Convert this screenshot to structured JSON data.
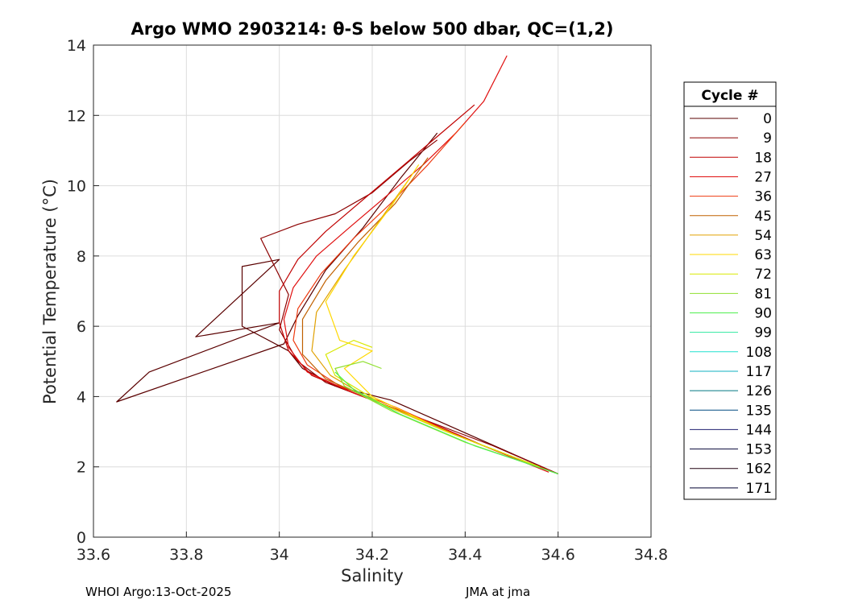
{
  "chart_data": {
    "type": "line",
    "title": "Argo WMO 2903214: θ-S below 500 dbar,  QC=(1,2)",
    "xlabel": "Salinity",
    "ylabel": "Potential Temperature (°C)",
    "xlim": [
      33.6,
      34.8
    ],
    "ylim": [
      0,
      14
    ],
    "xticks": [
      33.6,
      33.8,
      34,
      34.2,
      34.4,
      34.6,
      34.8
    ],
    "xtick_labels": [
      "33.6",
      "33.8",
      "34",
      "34.2",
      "34.4",
      "34.6",
      "34.8"
    ],
    "yticks": [
      0,
      2,
      4,
      6,
      8,
      10,
      12,
      14
    ],
    "ytick_labels": [
      "0",
      "2",
      "4",
      "6",
      "8",
      "10",
      "12",
      "14"
    ],
    "grid": true,
    "legend": {
      "title": "Cycle #",
      "placement": "outside-right",
      "entries": [
        {
          "label": "0",
          "color": "#5a0000"
        },
        {
          "label": "9",
          "color": "#8c0000"
        },
        {
          "label": "18",
          "color": "#c00000"
        },
        {
          "label": "27",
          "color": "#e01010"
        },
        {
          "label": "36",
          "color": "#ee3a10"
        },
        {
          "label": "45",
          "color": "#c06000"
        },
        {
          "label": "54",
          "color": "#e0a000"
        },
        {
          "label": "63",
          "color": "#ffd800"
        },
        {
          "label": "72",
          "color": "#d8e800"
        },
        {
          "label": "81",
          "color": "#90e030"
        },
        {
          "label": "90",
          "color": "#50f050"
        },
        {
          "label": "99",
          "color": "#30e8a0"
        },
        {
          "label": "108",
          "color": "#20e0d0"
        },
        {
          "label": "117",
          "color": "#10b0c0"
        },
        {
          "label": "126",
          "color": "#007880"
        },
        {
          "label": "135",
          "color": "#004a80"
        },
        {
          "label": "144",
          "color": "#202070"
        },
        {
          "label": "153",
          "color": "#101040"
        },
        {
          "label": "162",
          "color": "#200010"
        },
        {
          "label": "171",
          "color": "#000030"
        }
      ]
    },
    "series": [
      {
        "name": "0",
        "color": "#5a0000",
        "x": [
          34.6,
          34.48,
          34.36,
          34.24,
          34.12,
          34.05,
          34.02,
          33.92,
          33.92,
          34.0,
          33.82,
          34.0,
          33.72,
          33.65,
          34.01,
          34.04,
          34.1,
          34.18,
          34.26,
          34.34
        ],
        "y": [
          1.8,
          2.5,
          3.2,
          3.9,
          4.3,
          4.8,
          5.3,
          6.0,
          7.7,
          7.9,
          5.7,
          6.1,
          4.7,
          3.85,
          5.5,
          6.3,
          7.6,
          8.8,
          10.2,
          11.5
        ]
      },
      {
        "name": "9",
        "color": "#8c0000",
        "x": [
          34.6,
          34.46,
          34.32,
          34.2,
          34.1,
          34.04,
          34.0,
          34.02,
          33.96,
          34.04,
          34.12,
          34.2,
          34.28,
          34.34
        ],
        "y": [
          1.8,
          2.6,
          3.3,
          3.9,
          4.4,
          5.0,
          5.9,
          6.9,
          8.5,
          8.9,
          9.2,
          9.8,
          10.7,
          11.3
        ]
      },
      {
        "name": "18",
        "color": "#c00000",
        "x": [
          34.6,
          34.44,
          34.3,
          34.18,
          34.07,
          34.02,
          34.0,
          34.0,
          34.04,
          34.1,
          34.18,
          34.26,
          34.34,
          34.42
        ],
        "y": [
          1.8,
          2.6,
          3.4,
          4.0,
          4.6,
          5.3,
          6.1,
          7.0,
          7.9,
          8.7,
          9.6,
          10.5,
          11.4,
          12.3
        ]
      },
      {
        "name": "27",
        "color": "#e01010",
        "x": [
          34.58,
          34.42,
          34.28,
          34.16,
          34.06,
          34.02,
          34.01,
          34.03,
          34.08,
          34.15,
          34.23,
          34.31,
          34.38,
          34.44,
          34.49
        ],
        "y": [
          1.85,
          2.7,
          3.5,
          4.1,
          4.7,
          5.4,
          6.2,
          7.1,
          8.0,
          8.8,
          9.7,
          10.6,
          11.5,
          12.4,
          13.7
        ]
      },
      {
        "name": "36",
        "color": "#ee3a10",
        "x": [
          34.58,
          34.4,
          34.25,
          34.13,
          34.06,
          34.03,
          34.04,
          34.09,
          34.16,
          34.24,
          34.32,
          34.4
        ],
        "y": [
          1.9,
          2.8,
          3.7,
          4.3,
          4.9,
          5.6,
          6.5,
          7.5,
          8.5,
          9.5,
          10.6,
          11.8
        ]
      },
      {
        "name": "45",
        "color": "#c06000",
        "x": [
          34.56,
          34.38,
          34.22,
          34.1,
          34.05,
          34.05,
          34.1,
          34.17,
          34.25,
          34.32
        ],
        "y": [
          2.0,
          2.9,
          3.8,
          4.5,
          5.2,
          6.2,
          7.3,
          8.4,
          9.5,
          10.8
        ]
      },
      {
        "name": "54",
        "color": "#e0a000",
        "x": [
          34.56,
          34.36,
          34.2,
          34.11,
          34.07,
          34.08,
          34.14,
          34.21,
          34.28
        ],
        "y": [
          2.0,
          3.0,
          3.9,
          4.6,
          5.3,
          6.4,
          7.6,
          8.9,
          10.2
        ]
      },
      {
        "name": "63",
        "color": "#ffd800",
        "x": [
          34.54,
          34.36,
          34.2,
          34.14,
          34.2,
          34.13,
          34.1,
          34.16,
          34.24,
          34.3
        ],
        "y": [
          2.1,
          3.0,
          4.0,
          4.8,
          5.3,
          5.6,
          6.7,
          8.0,
          9.4,
          10.6
        ]
      },
      {
        "name": "72",
        "color": "#d8e800",
        "x": [
          34.56,
          34.38,
          34.22,
          34.12,
          34.1,
          34.16,
          34.2
        ],
        "y": [
          2.0,
          2.9,
          3.8,
          4.6,
          5.2,
          5.6,
          5.4
        ]
      },
      {
        "name": "81",
        "color": "#90e030",
        "x": [
          34.6,
          34.4,
          34.24,
          34.14,
          34.12,
          34.18,
          34.22
        ],
        "y": [
          1.8,
          2.7,
          3.6,
          4.3,
          4.8,
          5.0,
          4.8
        ]
      },
      {
        "name": "90",
        "color": "#50f050",
        "x": [
          34.6,
          34.42,
          34.26,
          34.16,
          34.12
        ],
        "y": [
          1.8,
          2.6,
          3.5,
          4.2,
          4.7
        ]
      }
    ]
  },
  "legend_heading": "Cycle #",
  "footer": {
    "left": "WHOI Argo:13-Oct-2025",
    "right": "JMA at jma"
  }
}
